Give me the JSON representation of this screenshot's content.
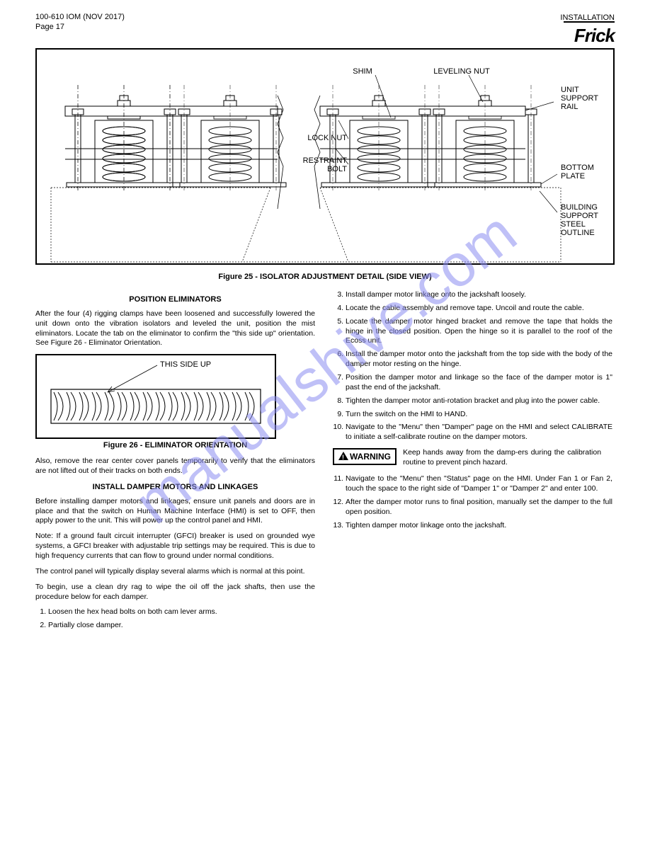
{
  "header": {
    "doc_id": "100-610 IOM (NOV 2017)",
    "page": "Page 17",
    "section": "INSTALLATION",
    "logo_text": "Frick"
  },
  "figure1": {
    "labels": {
      "shim": "SHIM",
      "leveling_nut": "LEVELING NUT",
      "unit_support_rail": "UNIT\nSUPPORT\nRAIL",
      "lock_nut": "LOCK NUT",
      "restraint_bolt": "RESTRAINT\nBOLT",
      "bottom_plate": "BOTTOM\nPLATE",
      "building_support": "BUILDING\nSUPPORT\nSTEEL\nOUTLINE"
    },
    "caption": "Figure 25 - ISOLATOR ADJUSTMENT DETAIL (SIDE VIEW)"
  },
  "section1_title": "POSITION ELIMINATORS",
  "section1_para": "After the four (4) rigging clamps have been loosened and successfully lowered the unit down onto the vibration isolators and leveled the unit, position the mist eliminators. Locate the tab on the eliminator to confirm the \"this side up\" orientation. See Figure 26 - Eliminator Orientation.",
  "figure2": {
    "label": "THIS SIDE UP",
    "caption": "Figure 26 - ELIMINATOR ORIENTATION"
  },
  "section1_para2": "Also, remove the rear center cover panels temporarily to verify that the eliminators are not lifted out of their tracks on both ends.",
  "section2_title": "INSTALL DAMPER MOTORS AND LINKAGES",
  "section2_para1": "Before installing damper motors and linkages, ensure unit panels and doors are in place and that the switch on Human Machine Interface (HMI) is set to OFF, then apply power to the unit. This will power up the control panel and HMI.",
  "section2_para2": "Note: If a ground fault circuit interrupter (GFCI) breaker is used on grounded wye systems, a GFCI breaker with adjustable trip settings may be required. This is due to high frequency currents that can flow to ground under normal conditions.",
  "section2_para3": "The control panel will typically display several alarms which is normal at this point.",
  "section2_para4": "To begin, use a clean dry rag to wipe the oil off the jack shafts, then use the procedure below for each damper.",
  "steps": [
    "Loosen the hex head bolts on both cam lever arms.",
    "Partially close damper.",
    "Install damper motor linkage onto the jackshaft loosely.",
    "Locate the cable assembly and remove tape. Uncoil and route the cable.",
    "Locate the damper motor hinged bracket and remove the tape that holds the hinge in the closed position. Open the hinge so it is parallel to the roof of the Ecoss unit.",
    "Install the damper motor onto the jackshaft from the top side with the body of the damper motor resting on the hinge.",
    "Position the damper motor and linkage so the face of the damper motor is 1\" past the end of the jackshaft.",
    "Tighten the damper motor anti-rotation bracket and plug into the power cable.",
    "Turn the switch on the HMI to HAND.",
    "Navigate to the \"Menu\" then \"Damper\" page on the HMI and select CALIBRATE to initiate a self-calibrate routine on the damper motors."
  ],
  "warning_label": "WARNING",
  "warning_text": "Keep hands away from the damp-ers during the calibration routine to prevent pinch hazard.",
  "steps2_start": 11,
  "steps2": [
    "Navigate to the \"Menu\" then \"Status\" page on the HMI. Under Fan 1 or Fan 2, touch the space to the right side of \"Damper 1\" or \"Damper 2\" and enter 100.",
    "After the damper motor runs to final position, manually set the damper to the full open position.",
    "Tighten damper motor linkage onto the jackshaft."
  ],
  "watermark": "manualshive.com"
}
